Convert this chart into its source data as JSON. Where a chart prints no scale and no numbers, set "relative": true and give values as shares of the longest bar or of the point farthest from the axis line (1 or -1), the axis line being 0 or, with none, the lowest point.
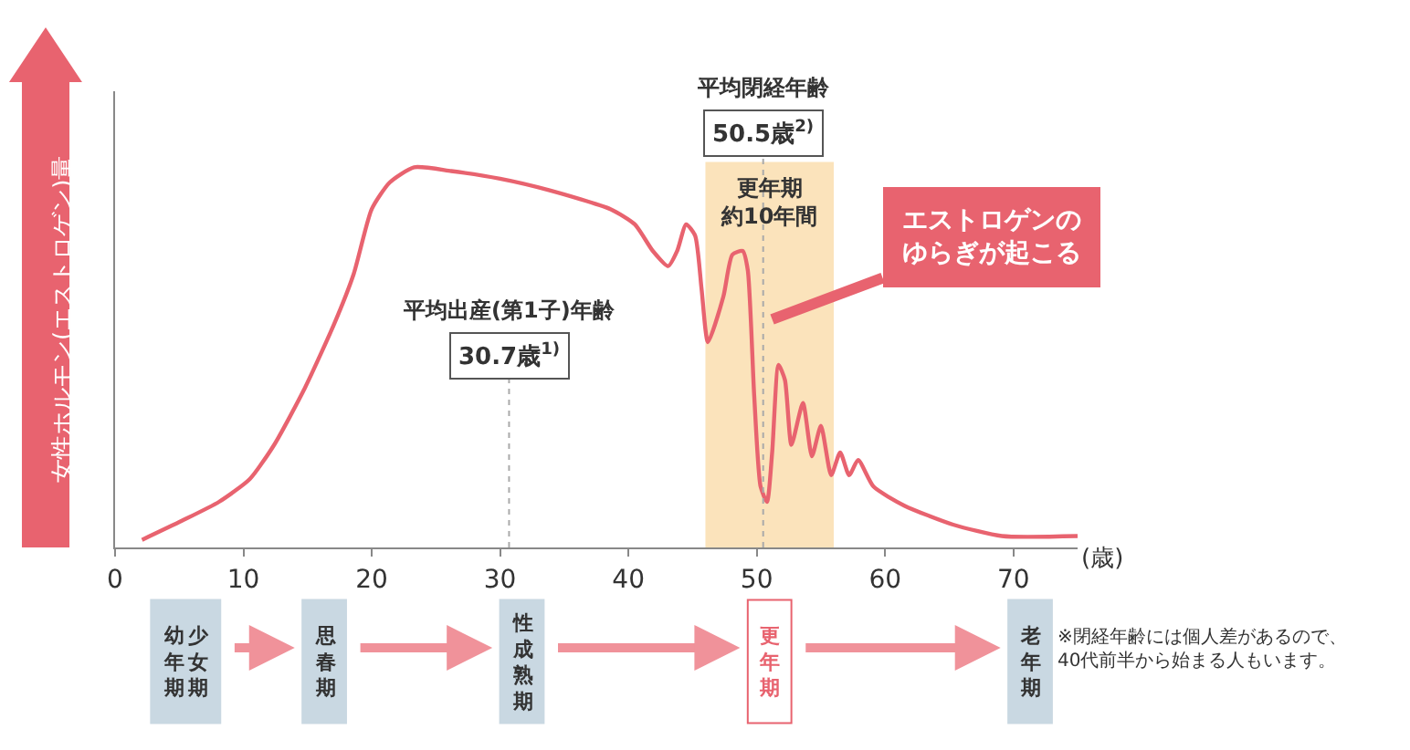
{
  "chart_data": {
    "type": "line",
    "relative": true,
    "ylabel": "女性ホルモン(エストロゲン)量",
    "xlabel": "(歳)",
    "xlim": [
      0,
      75
    ],
    "xticks": [
      0,
      10,
      20,
      30,
      40,
      50,
      60,
      70
    ],
    "grid": false,
    "marker": "none",
    "line_style": "solid",
    "series": [
      {
        "color": "#e8636f",
        "x": [
          2.1,
          5.2,
          8.1,
          10.5,
          12.4,
          14.8,
          17.1,
          18.6,
          20,
          21.4,
          23.3,
          26.2,
          30,
          33.8,
          38.6,
          40.5,
          41.9,
          43.1,
          43.8,
          44.5,
          45.2,
          45.7,
          46.2,
          47.4,
          48.1,
          48.9,
          49.3,
          49.8,
          50.3,
          50.8,
          51.2,
          51.7,
          52.2,
          52.7,
          53.6,
          54.3,
          55.0,
          55.8,
          56.5,
          57.2,
          57.9,
          59.1,
          61.5,
          65.3,
          69.1,
          75.0
        ],
        "values": [
          0.02,
          0.07,
          0.12,
          0.18,
          0.27,
          0.42,
          0.59,
          0.72,
          0.89,
          0.96,
          1.0,
          0.99,
          0.97,
          0.94,
          0.89,
          0.85,
          0.78,
          0.74,
          0.78,
          0.85,
          0.82,
          0.68,
          0.54,
          0.66,
          0.77,
          0.78,
          0.73,
          0.4,
          0.16,
          0.12,
          0.25,
          0.48,
          0.44,
          0.27,
          0.38,
          0.24,
          0.32,
          0.19,
          0.25,
          0.19,
          0.23,
          0.16,
          0.11,
          0.06,
          0.03,
          0.03
        ]
      }
    ],
    "ref_lines": [
      {
        "axis": "x",
        "value": 30.7,
        "label": "30.7歳$^{1)}$",
        "line_style": "dotted",
        "color": "#aaaaaa"
      },
      {
        "axis": "x",
        "value": 50.5,
        "label": "50.5歳$^{2)}$",
        "line_style": "dotted",
        "color": "#aaaaaa"
      }
    ],
    "bands": [
      {
        "axis": "x",
        "from": 46,
        "to": 56,
        "label": "更年期",
        "color": "#fbe3bb"
      }
    ],
    "annotations": [
      "平均出産(第1子)年齢",
      "平均閉経年齢",
      "約10年間",
      {
        "text": "エストロゲンのゆらぎが起こる",
        "x": 51.2,
        "y": 0.6
      },
      "幼年期",
      "少女期",
      "思春期",
      "性成熟期",
      "更年期",
      "老年期",
      "※閉経年齢には個人差があるので、\n40代前半から始まる人もいます。"
    ]
  }
}
